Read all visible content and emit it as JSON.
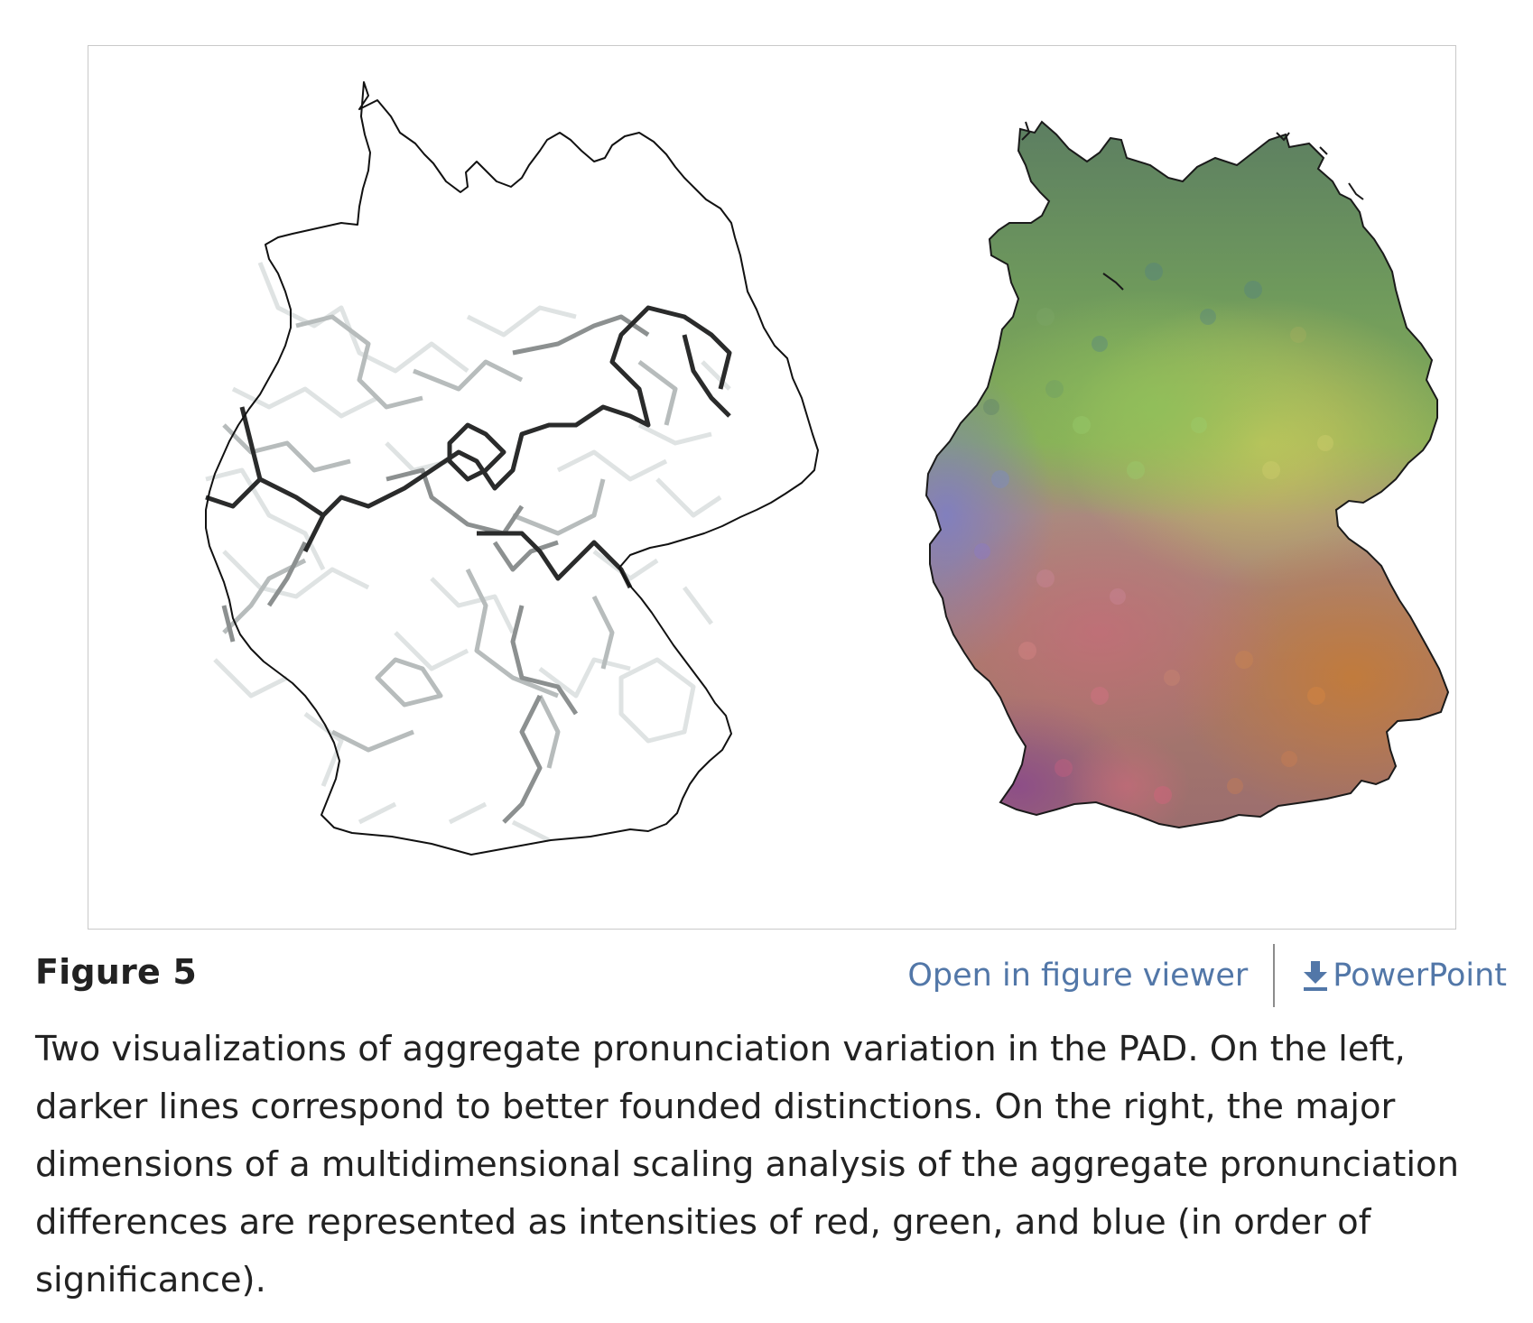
{
  "figure": {
    "label": "Figure 5",
    "maps": [
      {
        "name": "left-map",
        "style": "dialect-boundary lines",
        "line_color": "#1e1e1e",
        "outline_color": "#111111"
      },
      {
        "name": "right-map",
        "style": "MDS color map",
        "colors": {
          "north": "#5f8163",
          "center": "#7fa85a",
          "east": "#b7c15c",
          "west": "#7f7fb8",
          "south": "#a9756b",
          "southeast": "#b97a42",
          "southwest": "#8a4f86"
        }
      }
    ]
  },
  "actions": {
    "open_viewer": "Open in figure viewer",
    "powerpoint": "PowerPoint",
    "link_color": "#5277a8"
  },
  "icons": {
    "download": "download-icon"
  },
  "caption": {
    "text": "Two visualizations of aggregate pronunciation variation in the PAD. On the left, darker lines correspond to better founded distinctions. On the right, the major dimensions of a multidimensional scaling analysis of the aggregate pronunciation differences are represented as intensities of red, green, and blue (in order of significance)."
  }
}
